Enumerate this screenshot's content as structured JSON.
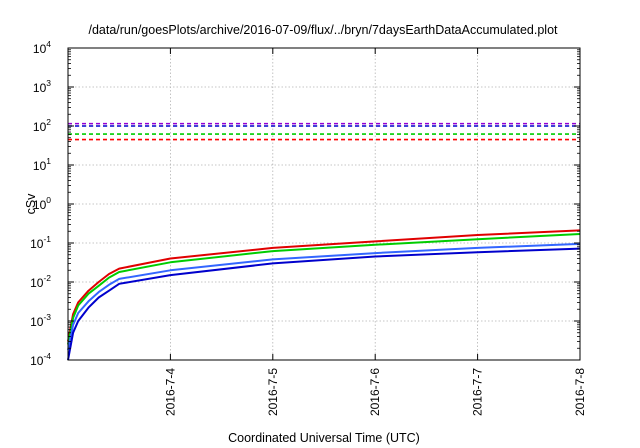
{
  "chart_data": {
    "type": "line",
    "title": "/data/run/goesPlots/archive/2016-07-09/flux/../bryn/7daysEarthDataAccumulated.plot",
    "xlabel": "Coordinated Universal Time (UTC)",
    "ylabel": "cSv",
    "yscale": "log",
    "ylim": [
      0.0001,
      10000
    ],
    "xlim": [
      "2016-07-03",
      "2016-07-08"
    ],
    "grid": true,
    "legend": "none",
    "x_ticks": [
      "2016-7-4",
      "2016-7-5",
      "2016-7-6",
      "2016-7-7",
      "2016-7-8"
    ],
    "y_ticks": [
      {
        "base": "10",
        "exp": "-4",
        "value": 0.0001
      },
      {
        "base": "10",
        "exp": "-3",
        "value": 0.001
      },
      {
        "base": "10",
        "exp": "-2",
        "value": 0.01
      },
      {
        "base": "10",
        "exp": "-1",
        "value": 0.1
      },
      {
        "base": "10",
        "exp": "0",
        "value": 1
      },
      {
        "base": "10",
        "exp": "1",
        "value": 10
      },
      {
        "base": "10",
        "exp": "2",
        "value": 100
      },
      {
        "base": "10",
        "exp": "3",
        "value": 1000
      },
      {
        "base": "10",
        "exp": "4",
        "value": 10000
      }
    ],
    "thresholds": [
      {
        "value": 115,
        "color": "#9400d3"
      },
      {
        "value": 100,
        "color": "#0000cc"
      },
      {
        "value": 62,
        "color": "#00cc00"
      },
      {
        "value": 45,
        "color": "#ff0000"
      }
    ],
    "series": [
      {
        "color": "#e00000",
        "x": [
          "2016-07-03T00:00",
          "2016-07-03T01:12",
          "2016-07-03T02:24",
          "2016-07-03T04:48",
          "2016-07-03T07:12",
          "2016-07-03T09:36",
          "2016-07-03T12:00",
          "2016-07-04T00:00",
          "2016-07-05T00:00",
          "2016-07-06T00:00",
          "2016-07-07T00:00",
          "2016-07-08T00:00"
        ],
        "y": [
          0.0003,
          0.0015,
          0.003,
          0.006,
          0.01,
          0.016,
          0.022,
          0.04,
          0.075,
          0.11,
          0.16,
          0.21
        ]
      },
      {
        "color": "#00cc00",
        "x": [
          "2016-07-03T00:00",
          "2016-07-03T01:12",
          "2016-07-03T02:24",
          "2016-07-03T04:48",
          "2016-07-03T07:12",
          "2016-07-03T09:36",
          "2016-07-03T12:00",
          "2016-07-04T00:00",
          "2016-07-05T00:00",
          "2016-07-06T00:00",
          "2016-07-07T00:00",
          "2016-07-08T00:00"
        ],
        "y": [
          0.00025,
          0.0012,
          0.0025,
          0.005,
          0.008,
          0.013,
          0.018,
          0.032,
          0.062,
          0.09,
          0.125,
          0.17
        ]
      },
      {
        "color": "#3366ff",
        "x": [
          "2016-07-03T00:00",
          "2016-07-03T01:12",
          "2016-07-03T02:24",
          "2016-07-03T04:48",
          "2016-07-03T07:12",
          "2016-07-03T09:36",
          "2016-07-03T12:00",
          "2016-07-04T00:00",
          "2016-07-05T00:00",
          "2016-07-06T00:00",
          "2016-07-07T00:00",
          "2016-07-08T00:00"
        ],
        "y": [
          0.00018,
          0.0008,
          0.0016,
          0.0032,
          0.0055,
          0.0085,
          0.012,
          0.02,
          0.038,
          0.055,
          0.075,
          0.095
        ]
      },
      {
        "color": "#0000cc",
        "x": [
          "2016-07-03T00:00",
          "2016-07-03T01:12",
          "2016-07-03T02:24",
          "2016-07-03T04:48",
          "2016-07-03T07:12",
          "2016-07-03T09:36",
          "2016-07-03T12:00",
          "2016-07-04T00:00",
          "2016-07-05T00:00",
          "2016-07-06T00:00",
          "2016-07-07T00:00",
          "2016-07-08T00:00"
        ],
        "y": [
          0.0001,
          0.0005,
          0.001,
          0.0022,
          0.004,
          0.006,
          0.009,
          0.015,
          0.03,
          0.045,
          0.058,
          0.072
        ]
      }
    ]
  }
}
